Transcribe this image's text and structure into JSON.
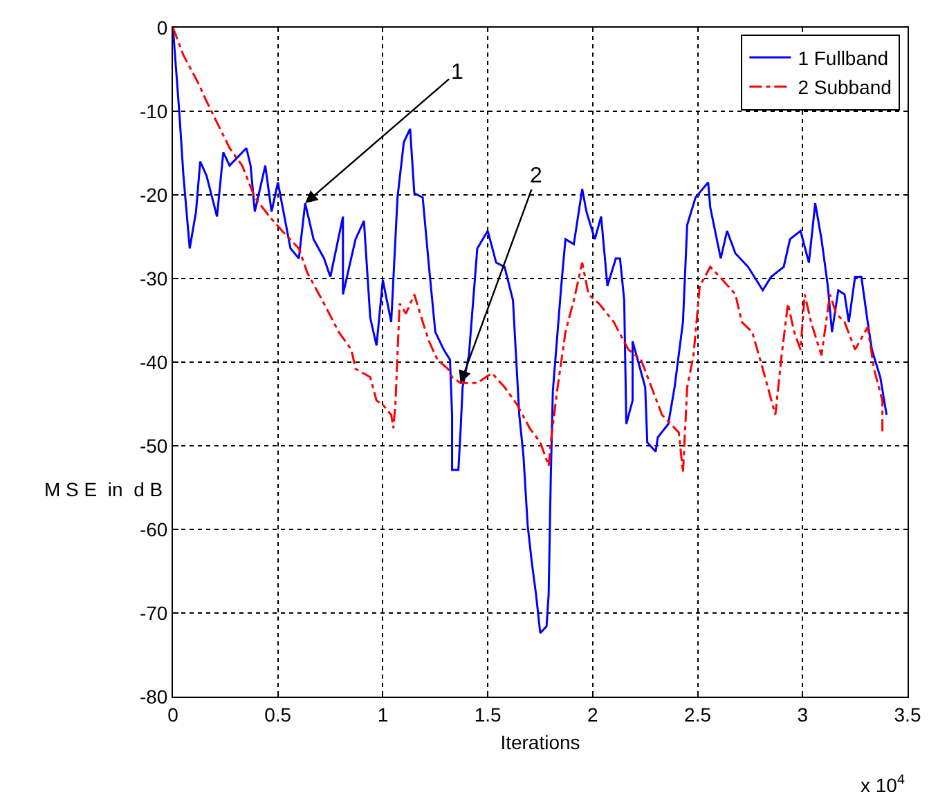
{
  "chart_data": {
    "type": "line",
    "xlabel": "Iterations",
    "ylabel": "M S E  in  d B",
    "xlim": [
      0,
      3.5
    ],
    "xticks": [
      0,
      0.5,
      1,
      1.5,
      2,
      2.5,
      3,
      3.5
    ],
    "ylim": [
      -80,
      0
    ],
    "yticks": [
      -80,
      -70,
      -60,
      -50,
      -40,
      -30,
      -20,
      -10,
      0
    ],
    "grid": true,
    "legend": "top right",
    "marker": "none",
    "annotations": [
      {
        "text": "1",
        "x": 0.63,
        "y": -21
      },
      {
        "text": "2",
        "x": 1.37,
        "y": -42.5
      },
      "x 10$^{4}$"
    ],
    "series": [
      {
        "name": "1 Fullband",
        "color": "#0000ff",
        "line_style": "solid",
        "x": [
          0,
          0.03,
          0.05,
          0.08,
          0.11,
          0.13,
          0.16,
          0.21,
          0.24,
          0.27,
          0.35,
          0.37,
          0.39,
          0.44,
          0.47,
          0.5,
          0.56,
          0.6,
          0.63,
          0.67,
          0.72,
          0.75,
          0.81,
          0.81,
          0.87,
          0.91,
          0.94,
          0.97,
          1.0,
          1.04,
          1.07,
          1.1,
          1.13,
          1.15,
          1.19,
          1.22,
          1.25,
          1.29,
          1.32,
          1.33,
          1.33,
          1.36,
          1.37,
          1.38,
          1.41,
          1.45,
          1.5,
          1.54,
          1.58,
          1.62,
          1.65,
          1.67,
          1.69,
          1.71,
          1.73,
          1.75,
          1.78,
          1.79,
          1.8,
          1.81,
          1.85,
          1.87,
          1.91,
          1.95,
          1.97,
          2.01,
          2.04,
          2.07,
          2.11,
          2.13,
          2.15,
          2.16,
          2.19,
          2.19,
          2.25,
          2.26,
          2.3,
          2.31,
          2.36,
          2.39,
          2.43,
          2.45,
          2.49,
          2.55,
          2.56,
          2.61,
          2.64,
          2.68,
          2.74,
          2.81,
          2.85,
          2.91,
          2.94,
          2.99,
          3.03,
          3.06,
          3.09,
          3.12,
          3.14,
          3.17,
          3.2,
          3.22,
          3.25,
          3.28,
          3.31,
          3.33,
          3.37,
          3.4
        ],
        "values": [
          0,
          -10,
          -17.7,
          -26.4,
          -22,
          -16,
          -17.7,
          -22.6,
          -14.9,
          -16.5,
          -14.4,
          -16.5,
          -22,
          -16.5,
          -22,
          -18.5,
          -26.4,
          -27.6,
          -21,
          -25.3,
          -27.6,
          -29.8,
          -22.6,
          -31.9,
          -25.3,
          -23.1,
          -34.7,
          -38,
          -30.2,
          -35.2,
          -20.3,
          -13.7,
          -12.1,
          -19.8,
          -20.3,
          -28.6,
          -36.4,
          -38.5,
          -39.7,
          -46.3,
          -52.9,
          -52.9,
          -48.4,
          -43,
          -39.2,
          -26.4,
          -24.3,
          -28.1,
          -28.6,
          -32.6,
          -46.3,
          -51.2,
          -59.5,
          -64,
          -67.8,
          -72.4,
          -71.6,
          -67.8,
          -54,
          -43.5,
          -30.9,
          -25.3,
          -25.9,
          -19.3,
          -22,
          -25.3,
          -22.6,
          -30.9,
          -27.6,
          -27.6,
          -32.6,
          -47.4,
          -44.6,
          -37.5,
          -43,
          -49.6,
          -50.7,
          -49,
          -47.4,
          -43,
          -35.2,
          -23.6,
          -20.3,
          -18.5,
          -21.5,
          -27.6,
          -24.3,
          -27,
          -28.6,
          -31.4,
          -29.8,
          -28.6,
          -25.3,
          -24.3,
          -28.1,
          -21,
          -25.3,
          -30.9,
          -36.4,
          -31.4,
          -31.9,
          -35.2,
          -29.8,
          -29.8,
          -35.2,
          -38.5,
          -41.8,
          -46.3
        ]
      },
      {
        "name": "2 Subband",
        "color": "#ff0000",
        "line_style": "dashed",
        "x": [
          0,
          0.05,
          0.12,
          0.16,
          0.27,
          0.33,
          0.39,
          0.46,
          0.52,
          0.6,
          0.64,
          0.72,
          0.79,
          0.85,
          0.87,
          0.94,
          0.97,
          1.0,
          1.04,
          1.05,
          1.06,
          1.08,
          1.11,
          1.15,
          1.19,
          1.22,
          1.26,
          1.31,
          1.33,
          1.37,
          1.45,
          1.52,
          1.58,
          1.64,
          1.7,
          1.75,
          1.79,
          1.8,
          1.83,
          1.87,
          1.91,
          1.95,
          1.98,
          2.03,
          2.1,
          2.17,
          2.23,
          2.28,
          2.33,
          2.41,
          2.43,
          2.45,
          2.48,
          2.51,
          2.56,
          2.62,
          2.68,
          2.71,
          2.76,
          2.81,
          2.87,
          2.9,
          2.93,
          2.96,
          2.99,
          3.01,
          3.04,
          3.09,
          3.13,
          3.16,
          3.2,
          3.25,
          3.31,
          3.34,
          3.38,
          3.38
        ],
        "values": [
          0,
          -3.3,
          -6.6,
          -8.8,
          -14.4,
          -16.5,
          -20.3,
          -22.6,
          -24.3,
          -26.4,
          -29.3,
          -33,
          -36.4,
          -38.5,
          -40.8,
          -41.8,
          -44.6,
          -45.1,
          -46.3,
          -47.9,
          -45,
          -33,
          -34.2,
          -31.9,
          -35.2,
          -37.5,
          -39.7,
          -40.8,
          -41.8,
          -42.5,
          -42.5,
          -41.3,
          -43,
          -45.1,
          -47.9,
          -49.6,
          -52.4,
          -49.6,
          -43.5,
          -36.4,
          -32.6,
          -28.1,
          -31.9,
          -33,
          -35.2,
          -38.5,
          -39.7,
          -43,
          -46.3,
          -48.4,
          -53.2,
          -43,
          -39.2,
          -30.9,
          -28.6,
          -30.2,
          -31.9,
          -35.2,
          -36.4,
          -40.8,
          -46.3,
          -39.2,
          -33,
          -36.4,
          -38.5,
          -31.9,
          -35.2,
          -39.2,
          -31.9,
          -34.2,
          -35.2,
          -38.5,
          -35.8,
          -40.8,
          -44.6,
          -48.4
        ]
      }
    ]
  }
}
